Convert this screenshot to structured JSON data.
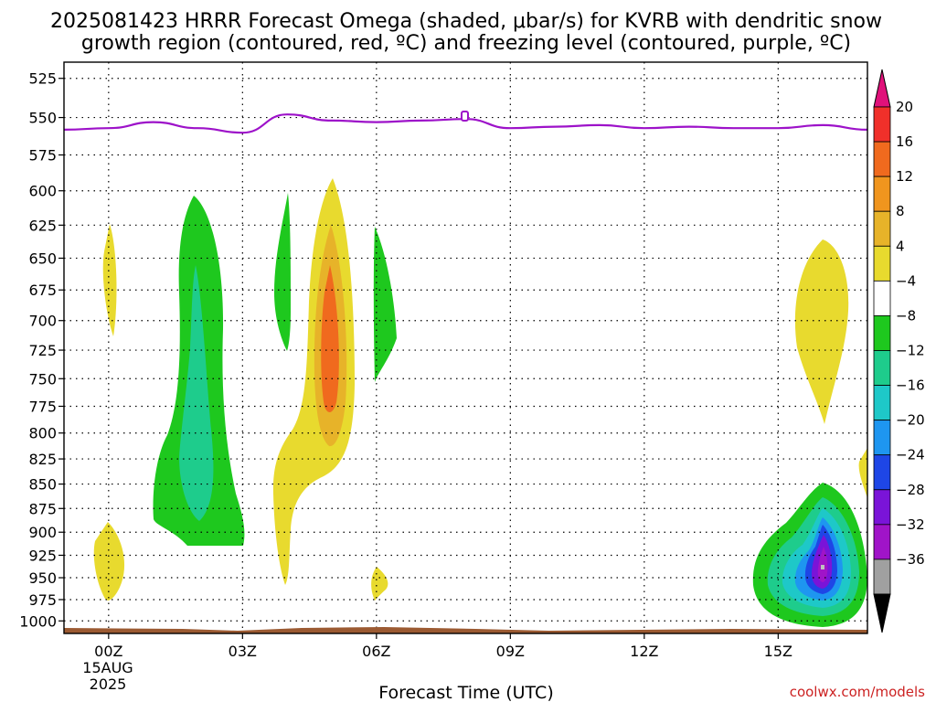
{
  "title": {
    "line1": "2025081423 HRRR Forecast Omega (shaded, μbar/s) for KVRB with dendritic snow",
    "line2": "growth region (contoured, red, ºC) and freezing level (contoured, purple, ºC)"
  },
  "credit": "coolwx.com/models",
  "chart_data": {
    "type": "heatmap",
    "title": "2025081423 HRRR Forecast Omega (shaded, μbar/s) for KVRB with dendritic snow growth region (contoured, red, ºC) and freezing level (contoured, purple, ºC)",
    "xlabel": "Forecast Time (UTC)",
    "ylabel": "",
    "x_unit": "hours since 2025-08-15 00Z",
    "xlim": [
      -1,
      17
    ],
    "ylim_pressure_hPa": [
      1015,
      515
    ],
    "y_scale": "log (pressure, inverted)",
    "grid": true,
    "x_ticks": [
      {
        "value": 0,
        "label": "00Z"
      },
      {
        "value": 3,
        "label": "03Z"
      },
      {
        "value": 6,
        "label": "06Z"
      },
      {
        "value": 9,
        "label": "09Z"
      },
      {
        "value": 12,
        "label": "12Z"
      },
      {
        "value": 15,
        "label": "15Z"
      }
    ],
    "date_label": {
      "day": "15AUG",
      "year": "2025"
    },
    "y_ticks": [
      525,
      550,
      575,
      600,
      625,
      650,
      675,
      700,
      725,
      750,
      775,
      800,
      825,
      850,
      875,
      900,
      925,
      950,
      975,
      1000
    ],
    "colorbar": {
      "unit": "μbar/s",
      "tick_labels": [
        "20",
        "16",
        "12",
        "8",
        "4",
        "−4",
        "−8",
        "−12",
        "−16",
        "−20",
        "−24",
        "−28",
        "−32",
        "−36"
      ],
      "bins": [
        {
          "range": ">20",
          "color": "#e0117a"
        },
        {
          "range": "16 to 20",
          "color": "#f0302a"
        },
        {
          "range": "12 to 16",
          "color": "#f06a1e"
        },
        {
          "range": "8 to 12",
          "color": "#f0951e"
        },
        {
          "range": "4 to 8",
          "color": "#e7b329"
        },
        {
          "range": "-4 to 4",
          "color": "#e8da2e"
        },
        {
          "range": "-8 to -4",
          "color": "#ffffff"
        },
        {
          "range": "-12 to -8",
          "color": "#1ec81e"
        },
        {
          "range": "-16 to -12",
          "color": "#1ecc8c"
        },
        {
          "range": "-20 to -16",
          "color": "#1ec8c8"
        },
        {
          "range": "-24 to -20",
          "color": "#1e96f0"
        },
        {
          "range": "-28 to -24",
          "color": "#1e46e6"
        },
        {
          "range": "-32 to -28",
          "color": "#7a14d8"
        },
        {
          "range": "-36 to -32",
          "color": "#a014c8"
        },
        {
          "range": "<-36",
          "color": "#a0a0a0"
        }
      ],
      "bottom_color": "#000000"
    },
    "freezing_level": {
      "color": "#9d12c9",
      "points_hours_hPa": [
        [
          -1,
          558
        ],
        [
          0,
          557
        ],
        [
          1,
          553
        ],
        [
          2,
          557
        ],
        [
          3,
          560
        ],
        [
          4,
          548
        ],
        [
          5,
          552
        ],
        [
          6,
          553
        ],
        [
          7,
          552
        ],
        [
          8,
          551
        ],
        [
          9,
          557
        ],
        [
          10,
          556
        ],
        [
          11,
          555
        ],
        [
          12,
          557
        ],
        [
          13,
          556
        ],
        [
          14,
          557
        ],
        [
          15,
          557
        ],
        [
          16,
          555
        ],
        [
          17,
          558
        ]
      ]
    },
    "terrain": {
      "color": "#9b5a32",
      "pressure_hPa": 1015
    },
    "omega_features": [
      {
        "name": "weak ascent 00Z",
        "level": "yellow",
        "center_hours": 0.0,
        "top_hPa": 630,
        "bottom_hPa": 720
      },
      {
        "name": "weak ascent 00Z low",
        "level": "yellow",
        "center_hours": 0.0,
        "top_hPa": 890,
        "bottom_hPa": 975
      },
      {
        "name": "descent 02Z",
        "level": "green",
        "center_hours": 2.0,
        "top_hPa": 610,
        "bottom_hPa": 915
      },
      {
        "name": "descent core 02Z",
        "level": "teal-green",
        "center_hours": 2.0,
        "top_hPa": 660,
        "bottom_hPa": 895
      },
      {
        "name": "descent 04Z",
        "level": "green",
        "center_hours": 4.0,
        "top_hPa": 605,
        "bottom_hPa": 730
      },
      {
        "name": "ascent 05Z",
        "level": "yellow",
        "center_hours": 5.0,
        "top_hPa": 595,
        "bottom_hPa": 965
      },
      {
        "name": "ascent core 05Z",
        "level": "orange",
        "center_hours": 5.0,
        "top_hPa": 640,
        "bottom_hPa": 810
      },
      {
        "name": "descent 06Z",
        "level": "green",
        "center_hours": 6.3,
        "top_hPa": 630,
        "bottom_hPa": 760
      },
      {
        "name": "weak ascent 06Z low",
        "level": "yellow",
        "center_hours": 6.0,
        "top_hPa": 950,
        "bottom_hPa": 975
      },
      {
        "name": "ascent 16Z",
        "level": "yellow",
        "center_hours": 16.0,
        "top_hPa": 645,
        "bottom_hPa": 790
      },
      {
        "name": "descent 16Z",
        "level": "green to purple",
        "center_hours": 16.0,
        "top_hPa": 860,
        "bottom_hPa": 1010,
        "min_value": -36
      }
    ]
  }
}
